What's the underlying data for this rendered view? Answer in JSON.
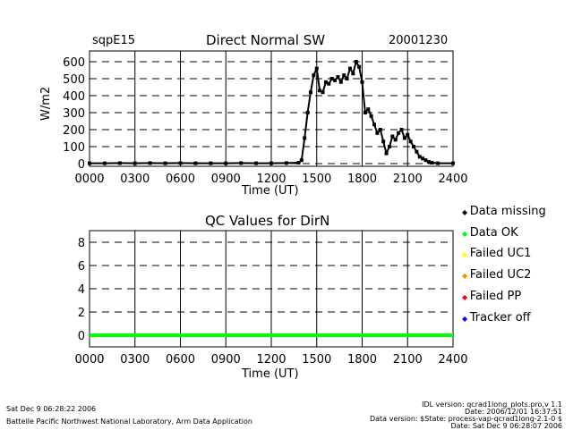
{
  "header": {
    "site": "sqpE15",
    "title": "Direct Normal SW",
    "date": "20001230"
  },
  "chart_data": [
    {
      "type": "scatter",
      "title": "Direct Normal SW",
      "xlabel": "Time (UT)",
      "ylabel": "W/m2",
      "xlim": [
        0,
        2400
      ],
      "ylim": [
        0,
        650
      ],
      "xticks": [
        "0000",
        "0300",
        "0600",
        "0900",
        "1200",
        "1500",
        "1800",
        "2100",
        "2400"
      ],
      "yticks": [
        "0",
        "100",
        "200",
        "300",
        "400",
        "500",
        "600"
      ],
      "grid": true,
      "x": [
        0,
        100,
        200,
        300,
        400,
        500,
        600,
        700,
        800,
        900,
        1000,
        1100,
        1200,
        1300,
        1380,
        1400,
        1420,
        1440,
        1460,
        1480,
        1500,
        1520,
        1540,
        1560,
        1580,
        1600,
        1620,
        1640,
        1660,
        1680,
        1700,
        1720,
        1740,
        1760,
        1780,
        1800,
        1820,
        1840,
        1860,
        1880,
        1900,
        1920,
        1940,
        1960,
        1980,
        2000,
        2020,
        2040,
        2060,
        2080,
        2100,
        2120,
        2140,
        2160,
        2180,
        2200,
        2220,
        2240,
        2260,
        2300,
        2400
      ],
      "y": [
        2,
        2,
        3,
        2,
        3,
        2,
        3,
        2,
        2,
        2,
        3,
        2,
        2,
        3,
        5,
        20,
        150,
        300,
        420,
        520,
        560,
        430,
        420,
        480,
        470,
        500,
        490,
        510,
        480,
        520,
        500,
        560,
        530,
        600,
        570,
        480,
        300,
        320,
        280,
        230,
        180,
        200,
        130,
        60,
        100,
        160,
        140,
        180,
        200,
        150,
        170,
        130,
        100,
        70,
        40,
        30,
        20,
        10,
        5,
        2,
        2
      ],
      "color": "#000000"
    },
    {
      "type": "line",
      "title": "QC Values for DirN",
      "xlabel": "Time (UT)",
      "xlim": [
        0,
        2400
      ],
      "ylim": [
        -1,
        9
      ],
      "xticks": [
        "0000",
        "0300",
        "0600",
        "0900",
        "1200",
        "1500",
        "1800",
        "2100",
        "2400"
      ],
      "yticks": [
        "0",
        "2",
        "4",
        "6",
        "8"
      ],
      "grid": true,
      "x": [
        0,
        2400
      ],
      "y": [
        0,
        0
      ],
      "color": "#00ff00",
      "legend": [
        {
          "label": "Data missing",
          "color": "#000000"
        },
        {
          "label": "Data OK",
          "color": "#00ff00"
        },
        {
          "label": "Failed UC1",
          "color": "#ffff00"
        },
        {
          "label": "Failed UC2",
          "color": "#ff8c00"
        },
        {
          "label": "Failed PP",
          "color": "#ff0000"
        },
        {
          "label": "Tracker off",
          "color": "#0000ff"
        }
      ],
      "legend_placement": "right"
    }
  ],
  "footer": {
    "run_date": "Sat Dec  9 06:28:22 2006",
    "org": "Battelle Pacific Northwest National Laboratory, Arm Data Application",
    "idl_version": "IDL version: qcrad1long_plots.pro,v 1.1",
    "idl_date": "Date: 2006/12/01 16:37:51",
    "data_version": "Data version: $State: process-vap-qcrad1long-2.1-0 $",
    "data_date": "Date: Sat Dec  9 06:28:07 2006"
  }
}
